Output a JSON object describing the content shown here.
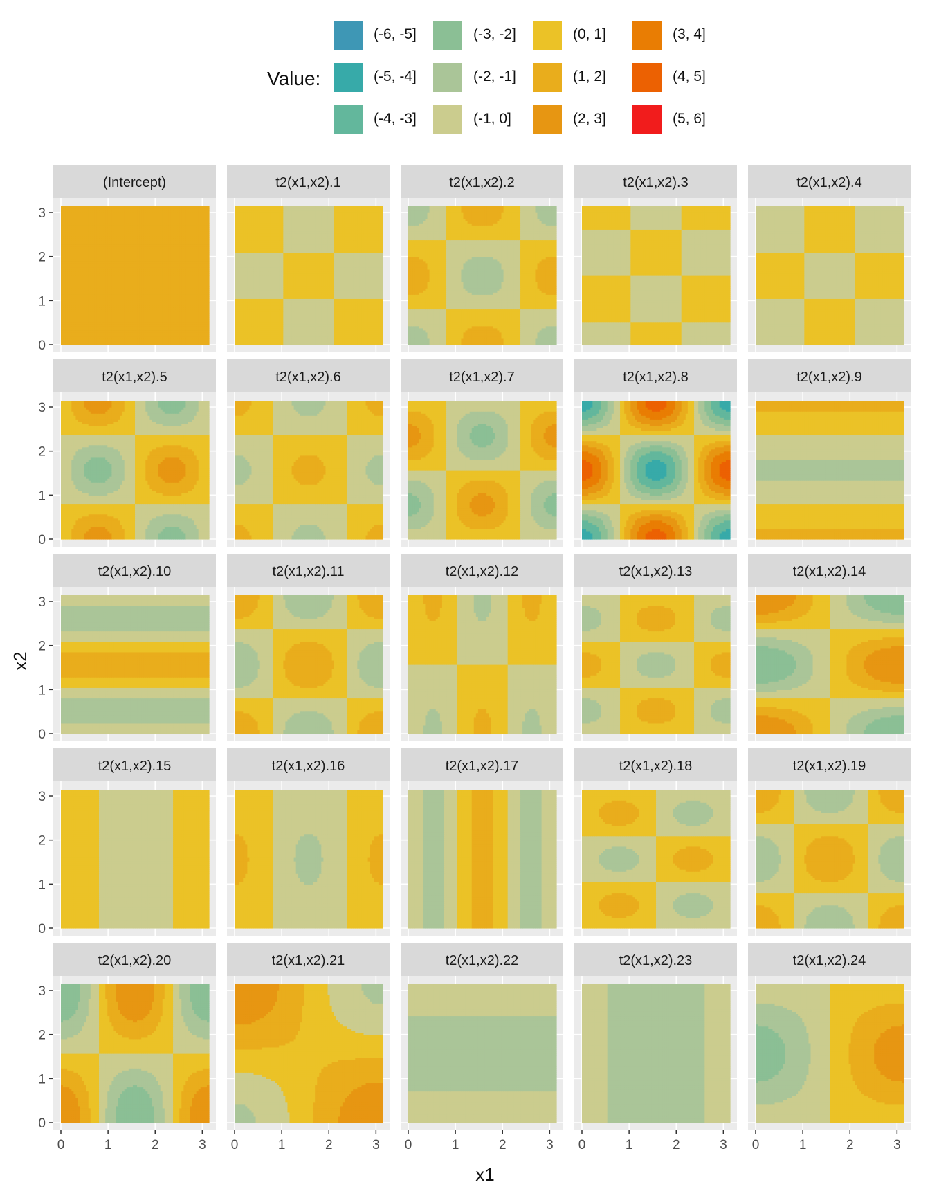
{
  "chart_data": {
    "type": "heatmap",
    "chart_kind": "faceted filled contour plot",
    "xlabel": "x1",
    "ylabel": "x2",
    "xlim": [
      0,
      3.14159
    ],
    "ylim": [
      0,
      3.14159
    ],
    "x_ticks": [
      "0",
      "1",
      "2",
      "3"
    ],
    "y_ticks": [
      "0",
      "1",
      "2",
      "3"
    ],
    "grid": true,
    "legend": {
      "title": "Value:",
      "position": "top",
      "bins": [
        {
          "label": "(-6, -5]",
          "color": "#3e97b5"
        },
        {
          "label": "(-5, -4]",
          "color": "#37aaa9"
        },
        {
          "label": "(-4, -3]",
          "color": "#63b79c"
        },
        {
          "label": "(-3, -2]",
          "color": "#8bbf95"
        },
        {
          "label": "(-2, -1]",
          "color": "#aac598"
        },
        {
          "label": "(-1, 0]",
          "color": "#cbcc8e"
        },
        {
          "label": "(0, 1]",
          "color": "#ebc227"
        },
        {
          "label": "(1, 2]",
          "color": "#e9ad1c"
        },
        {
          "label": "(2, 3]",
          "color": "#e79612"
        },
        {
          "label": "(3, 4]",
          "color": "#e97d03"
        },
        {
          "label": "(4, 5]",
          "color": "#ec6102"
        },
        {
          "label": "(5, 6]",
          "color": "#f11c1c"
        }
      ]
    },
    "panels": [
      {
        "title": "(Intercept)",
        "a": 0,
        "kx": 0,
        "ky": 0,
        "px": 0,
        "py": 0,
        "c": 1.5
      },
      {
        "title": "t2(x1,x2).1",
        "a": 1.0,
        "kx": 3,
        "ky": 3,
        "px": 1.5708,
        "py": 1.5708,
        "c": 0
      },
      {
        "title": "t2(x1,x2).2",
        "a": -1.6,
        "kx": 2,
        "ky": 2,
        "px": 0,
        "py": 0,
        "c": 0
      },
      {
        "title": "t2(x1,x2).3",
        "a": 1.0,
        "kx": 3,
        "ky": 3,
        "px": 1.5708,
        "py": 0,
        "c": 0
      },
      {
        "title": "t2(x1,x2).4",
        "a": -1.0,
        "kx": 3,
        "ky": 3,
        "px": 1.5708,
        "py": 1.5708,
        "c": 0
      },
      {
        "title": "t2(x1,x2).5",
        "a": 2.4,
        "kx": 2,
        "ky": 2,
        "px": -1.5708,
        "py": 0,
        "c": 0
      },
      {
        "title": "t2(x1,x2).6",
        "a": 1.3,
        "kx": 2,
        "ky": 2,
        "px": 0,
        "py": 0,
        "c": 0
      },
      {
        "title": "t2(x1,x2).7",
        "a": 2.3,
        "kx": 2,
        "ky": 2,
        "px": 0,
        "py": 1.5708,
        "c": 0
      },
      {
        "title": "t2(x1,x2).8",
        "a": -4.5,
        "kx": 2,
        "ky": 2,
        "px": 0,
        "py": 0,
        "c": 0
      },
      {
        "title": "t2(x1,x2).9",
        "a": 1.1,
        "kx": 0,
        "ky": 2,
        "px": 0,
        "py": 0,
        "c": 0
      },
      {
        "title": "t2(x1,x2).10",
        "a": 1.5,
        "kx": 0,
        "ky": 3,
        "px": 0,
        "py": 1.5708,
        "c": 0
      },
      {
        "title": "t2(x1,x2).11",
        "a": 2.0,
        "kx": 2,
        "ky": 2,
        "px": 0,
        "py": 0,
        "c": 0
      },
      {
        "title": "t2(x1,x2).12",
        "a": 1.2,
        "kx": 3,
        "ky": 1,
        "px": 1.5708,
        "py": 0,
        "c": 0
      },
      {
        "title": "t2(x1,x2).13",
        "a": 1.5,
        "kx": 2,
        "ky": 3,
        "px": 0,
        "py": 1.5708,
        "c": 0
      },
      {
        "title": "t2(x1,x2).14",
        "a": 3.0,
        "kx": 1,
        "ky": 2,
        "px": 0,
        "py": 0,
        "c": 0
      },
      {
        "title": "t2(x1,x2).15",
        "a": 1.0,
        "kx": 2,
        "ky": 0,
        "px": 0,
        "py": 0,
        "c": 0
      },
      {
        "title": "t2(x1,x2).16",
        "a": 1.2,
        "kx": 2,
        "ky": 1,
        "px": 0,
        "py": -1.5708,
        "c": 0
      },
      {
        "title": "t2(x1,x2).17",
        "a": 1.3,
        "kx": 3,
        "ky": 0,
        "px": 1.5708,
        "py": 0,
        "c": 0
      },
      {
        "title": "t2(x1,x2).18",
        "a": 1.5,
        "kx": 2,
        "ky": 3,
        "px": 1.5708,
        "py": 1.5708,
        "c": 0
      },
      {
        "title": "t2(x1,x2).19",
        "a": 2.0,
        "kx": 2,
        "ky": 2,
        "px": 0,
        "py": 0,
        "c": 0
      },
      {
        "title": "t2(x1,x2).20",
        "a": 3.0,
        "kx": 2,
        "ky": 1,
        "px": 0,
        "py": 0,
        "c": 0
      },
      {
        "title": "t2(x1,x2).21",
        "a": -2.0,
        "kx": 1,
        "ky": 1,
        "px": 0,
        "py": 0,
        "c": 0.8
      },
      {
        "title": "t2(x1,x2).22",
        "a": 1.5,
        "kx": 0,
        "ky": 1,
        "px": 0,
        "py": 1.5708,
        "c": 0
      },
      {
        "title": "t2(x1,x2).23",
        "a": 2.0,
        "kx": 1,
        "ky": 0,
        "px": 1.5708,
        "py": 0,
        "c": 0
      },
      {
        "title": "t2(x1,x2).24",
        "a": 2.5,
        "kx": 1,
        "ky": 1,
        "px": 0,
        "py": 1.5708,
        "c": 0
      }
    ]
  }
}
